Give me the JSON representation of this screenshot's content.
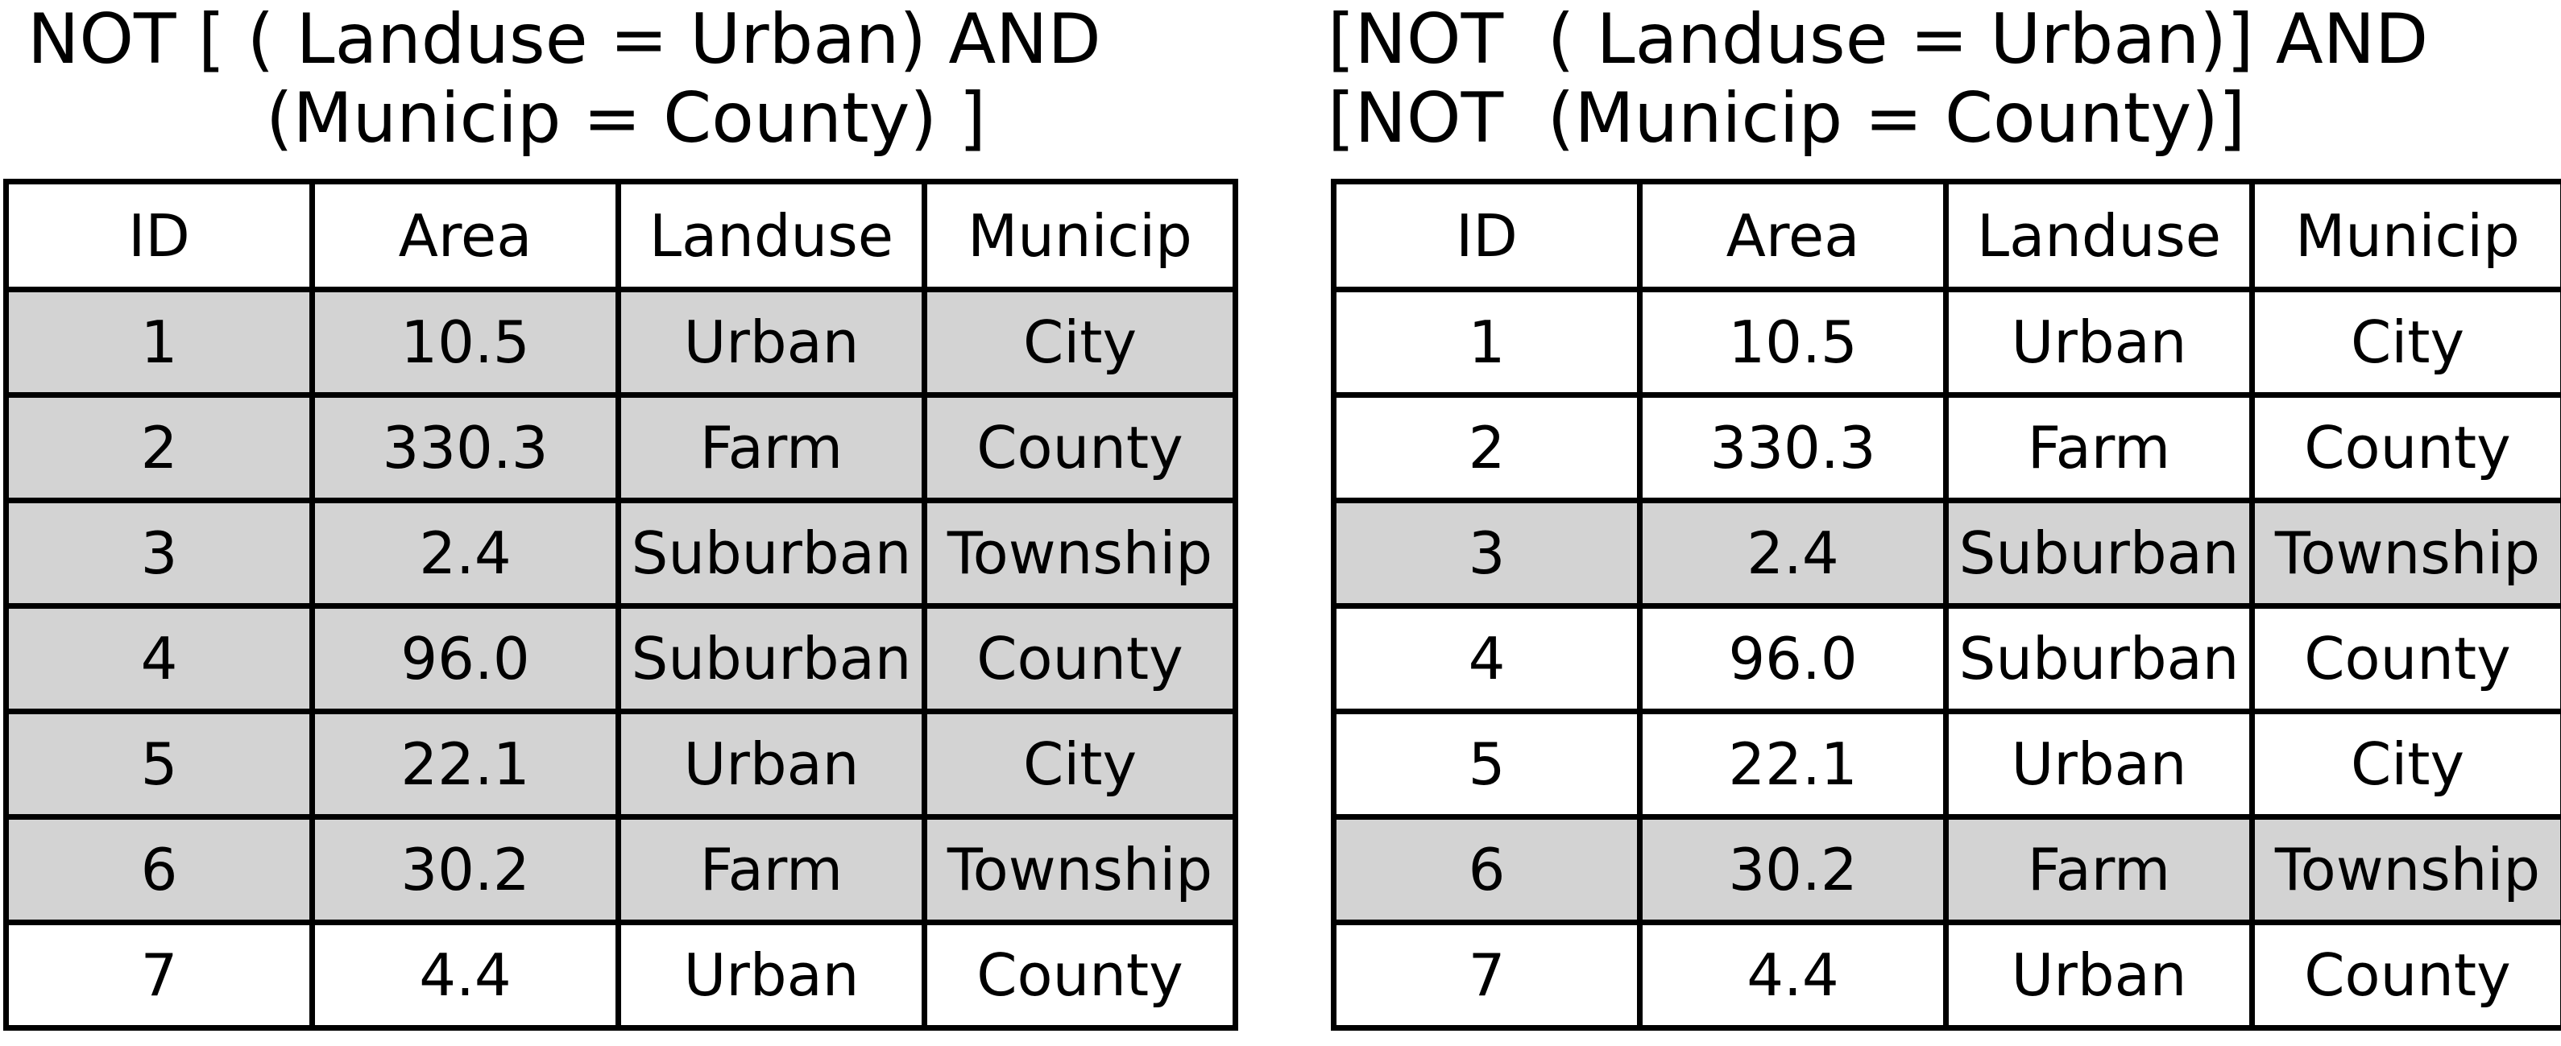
{
  "colors": {
    "selected_row": "#d3d3d3",
    "unselected_row": "#ffffff",
    "border": "#000000"
  },
  "left": {
    "expression": [
      "NOT [ ( Landuse = Urban) AND",
      "(Municip = County) ]"
    ],
    "columns": [
      "ID",
      "Area",
      "Landuse",
      "Municip"
    ],
    "rows": [
      {
        "id": "1",
        "area": "10.5",
        "landuse": "Urban",
        "municip": "City",
        "selected": true
      },
      {
        "id": "2",
        "area": "330.3",
        "landuse": "Farm",
        "municip": "County",
        "selected": true
      },
      {
        "id": "3",
        "area": "2.4",
        "landuse": "Suburban",
        "municip": "Township",
        "selected": true
      },
      {
        "id": "4",
        "area": "96.0",
        "landuse": "Suburban",
        "municip": "County",
        "selected": true
      },
      {
        "id": "5",
        "area": "22.1",
        "landuse": "Urban",
        "municip": "City",
        "selected": true
      },
      {
        "id": "6",
        "area": "30.2",
        "landuse": "Farm",
        "municip": "Township",
        "selected": true
      },
      {
        "id": "7",
        "area": "4.4",
        "landuse": "Urban",
        "municip": "County",
        "selected": false
      }
    ]
  },
  "right": {
    "expression": [
      "[NOT  ( Landuse = Urban)] AND",
      "[NOT  (Municip = County)]"
    ],
    "columns": [
      "ID",
      "Area",
      "Landuse",
      "Municip"
    ],
    "rows": [
      {
        "id": "1",
        "area": "10.5",
        "landuse": "Urban",
        "municip": "City",
        "selected": false
      },
      {
        "id": "2",
        "area": "330.3",
        "landuse": "Farm",
        "municip": "County",
        "selected": false
      },
      {
        "id": "3",
        "area": "2.4",
        "landuse": "Suburban",
        "municip": "Township",
        "selected": true
      },
      {
        "id": "4",
        "area": "96.0",
        "landuse": "Suburban",
        "municip": "County",
        "selected": false
      },
      {
        "id": "5",
        "area": "22.1",
        "landuse": "Urban",
        "municip": "City",
        "selected": false
      },
      {
        "id": "6",
        "area": "30.2",
        "landuse": "Farm",
        "municip": "Township",
        "selected": true
      },
      {
        "id": "7",
        "area": "4.4",
        "landuse": "Urban",
        "municip": "County",
        "selected": false
      }
    ]
  }
}
